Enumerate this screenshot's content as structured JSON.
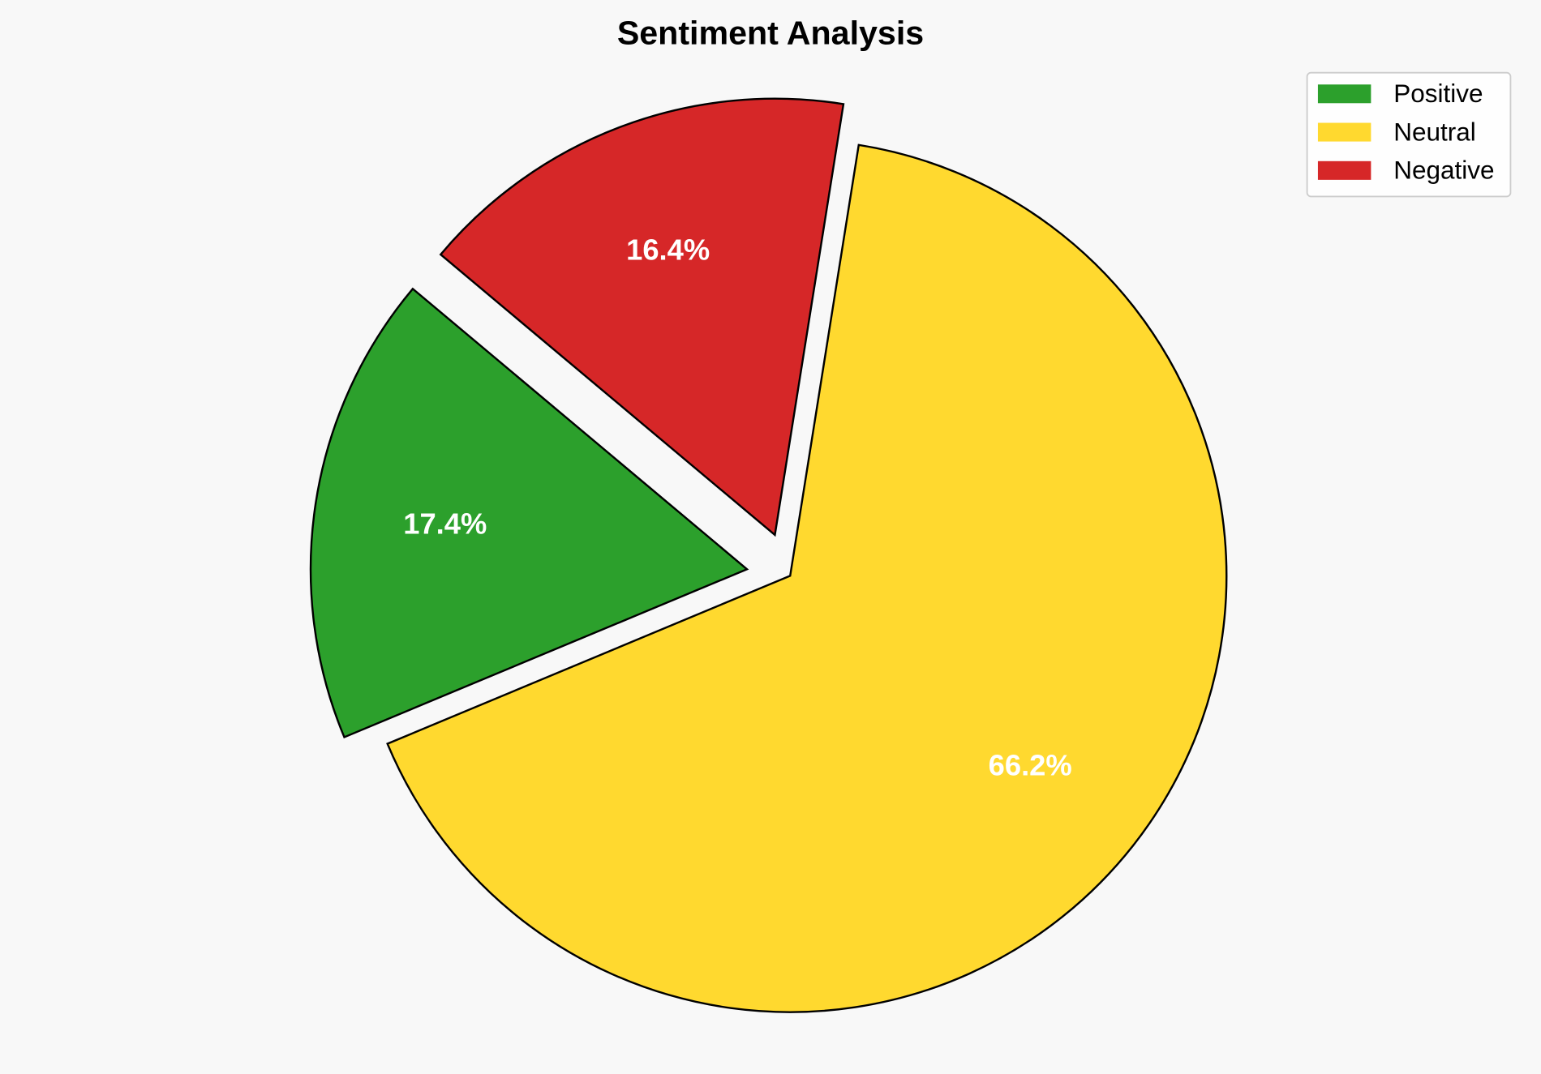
{
  "chart_data": {
    "type": "pie",
    "title": "Sentiment Analysis",
    "categories": [
      "Positive",
      "Neutral",
      "Negative"
    ],
    "values": [
      17.4,
      66.2,
      16.4
    ],
    "labels": [
      "17.4%",
      "66.2%",
      "16.4%"
    ],
    "colors": [
      "#2ca02c",
      "#ffd92f",
      "#d62728"
    ],
    "exploded": [
      true,
      false,
      true
    ],
    "start_angle_deg": 140,
    "direction": "counterclockwise",
    "legend": {
      "placement": "top-right",
      "entries": [
        "Positive",
        "Neutral",
        "Negative"
      ]
    },
    "background": "#f8f8f8"
  }
}
